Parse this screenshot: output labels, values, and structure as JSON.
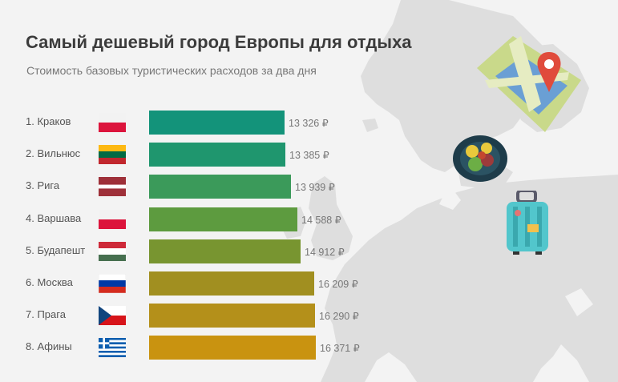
{
  "title": "Самый дешевый город Европы для отдыха",
  "subtitle": "Стоимость базовых туристических расходов за два дня",
  "chart_data": {
    "type": "bar",
    "orientation": "horizontal",
    "title": "Самый дешевый город Европы для отдыха",
    "subtitle": "Стоимость базовых туристических расходов за два дня",
    "unit": "₽",
    "categories": [
      "1. Краков",
      "2. Вильнюс",
      "3. Рига",
      "4. Варшава",
      "5. Будапешт",
      "6. Москва",
      "7. Прага",
      "8. Афины"
    ],
    "values": [
      13326,
      13385,
      13939,
      14588,
      14912,
      16209,
      16290,
      16371
    ],
    "value_labels": [
      "13 326 ₽",
      "13 385 ₽",
      "13 939 ₽",
      "14 588 ₽",
      "14 912 ₽",
      "16 209 ₽",
      "16 290 ₽",
      "16 371 ₽"
    ],
    "flags": [
      "poland",
      "lithuania",
      "latvia",
      "poland",
      "hungary",
      "russia",
      "czech",
      "greece"
    ],
    "bar_colors": [
      "#13937a",
      "#1f966e",
      "#3b9a5a",
      "#5d9b3f",
      "#789530",
      "#a18f20",
      "#b4901a",
      "#c99310"
    ]
  },
  "decorations": [
    "map-icon",
    "food-plate-icon",
    "suitcase-icon"
  ],
  "colors": {
    "background": "#f3f3f3",
    "map_land": "#dedede",
    "title": "#3c3c3c",
    "subtitle": "#777777"
  }
}
